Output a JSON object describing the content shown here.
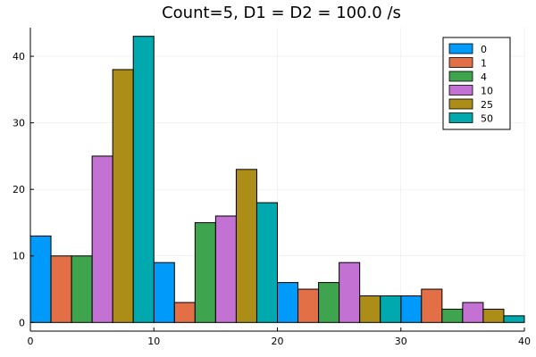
{
  "chart_data": {
    "type": "bar",
    "title": "Count=5, D1 = D2 = 100.0 /s",
    "xlabel": "",
    "ylabel": "",
    "xlim": [
      0,
      40
    ],
    "ylim": [
      -1.3,
      44.3
    ],
    "xticks": [
      0,
      10,
      20,
      30,
      40
    ],
    "yticks": [
      0,
      10,
      20,
      30,
      40
    ],
    "grid": true,
    "legend_position": "top-right",
    "bin_starts": [
      0,
      10,
      20,
      30
    ],
    "bin_width": 10,
    "series": [
      {
        "name": "0",
        "color": "#009AFA",
        "values": [
          13,
          9,
          6,
          4
        ]
      },
      {
        "name": "1",
        "color": "#E36F47",
        "values": [
          10,
          3,
          5,
          5
        ]
      },
      {
        "name": "4",
        "color": "#3EA44E",
        "values": [
          10,
          15,
          6,
          2
        ]
      },
      {
        "name": "10",
        "color": "#C371D2",
        "values": [
          25,
          16,
          9,
          3
        ]
      },
      {
        "name": "25",
        "color": "#AC8D18",
        "values": [
          38,
          23,
          4,
          2
        ]
      },
      {
        "name": "50",
        "color": "#00A9AD",
        "values": [
          43,
          18,
          4,
          1
        ]
      }
    ]
  }
}
